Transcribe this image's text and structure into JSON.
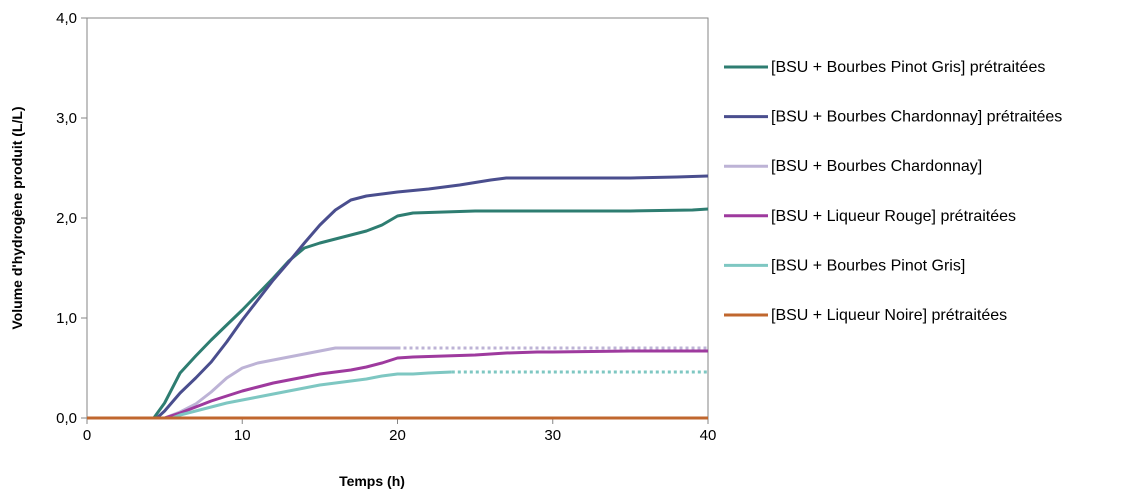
{
  "chart_data": {
    "type": "line",
    "title": "",
    "xlabel": "Temps (h)",
    "ylabel": "Volume d'hydrogène produit (L/L)",
    "xlim": [
      0,
      40
    ],
    "ylim": [
      0,
      4
    ],
    "x_ticks": [
      "0",
      "10",
      "20",
      "30",
      "40"
    ],
    "y_ticks": [
      "0,0",
      "1,0",
      "2,0",
      "3,0",
      "4,0"
    ],
    "grid": false,
    "legend_position": "right",
    "series": [
      {
        "name": "[BSU + Bourbes Pinot Gris] prétraitées",
        "color": "#2e7d71",
        "x": [
          0,
          4.3,
          5,
          6,
          7,
          8,
          9,
          10,
          11,
          12,
          13,
          14,
          15,
          16,
          17,
          18,
          19,
          20,
          21,
          23,
          25,
          30,
          35,
          39,
          40
        ],
        "y": [
          0,
          0,
          0.15,
          0.45,
          0.62,
          0.78,
          0.93,
          1.08,
          1.24,
          1.4,
          1.57,
          1.7,
          1.75,
          1.79,
          1.83,
          1.87,
          1.93,
          2.02,
          2.05,
          2.06,
          2.07,
          2.07,
          2.07,
          2.08,
          2.09
        ],
        "dashed_from_x": null
      },
      {
        "name": "[BSU + Bourbes Chardonnay] prétraitées",
        "color": "#4a4e8e",
        "x": [
          0,
          4.5,
          5,
          6,
          7,
          8,
          9,
          10,
          11,
          12,
          13,
          14,
          15,
          16,
          17,
          18,
          19,
          20,
          22,
          24,
          26,
          27,
          30,
          35,
          38,
          40
        ],
        "y": [
          0,
          0,
          0.07,
          0.25,
          0.4,
          0.56,
          0.76,
          0.98,
          1.18,
          1.38,
          1.56,
          1.75,
          1.93,
          2.08,
          2.18,
          2.22,
          2.24,
          2.26,
          2.29,
          2.33,
          2.38,
          2.4,
          2.4,
          2.4,
          2.41,
          2.42
        ],
        "dashed_from_x": null
      },
      {
        "name": "[BSU + Bourbes Chardonnay]",
        "color": "#bdb3d6",
        "x": [
          0,
          5,
          6,
          7,
          8,
          9,
          10,
          11,
          12,
          13,
          14,
          15,
          16,
          17,
          18,
          19,
          20,
          25,
          30,
          35,
          40
        ],
        "y": [
          0,
          0,
          0.06,
          0.14,
          0.26,
          0.4,
          0.5,
          0.55,
          0.58,
          0.61,
          0.64,
          0.67,
          0.7,
          0.7,
          0.7,
          0.7,
          0.7,
          0.7,
          0.7,
          0.7,
          0.7
        ],
        "dashed_from_x": 20
      },
      {
        "name": "[BSU + Liqueur Rouge] prétraitées",
        "color": "#9e3a9e",
        "x": [
          0,
          5,
          6,
          7,
          8,
          9,
          10,
          11,
          12,
          13,
          14,
          15,
          16,
          17,
          18,
          19,
          20,
          21,
          23,
          25,
          27,
          29,
          30,
          35,
          40
        ],
        "y": [
          0,
          0,
          0.05,
          0.11,
          0.17,
          0.22,
          0.27,
          0.31,
          0.35,
          0.38,
          0.41,
          0.44,
          0.46,
          0.48,
          0.51,
          0.55,
          0.6,
          0.61,
          0.62,
          0.63,
          0.65,
          0.66,
          0.66,
          0.67,
          0.67
        ],
        "dashed_from_x": null
      },
      {
        "name": "[BSU + Bourbes Pinot Gris]",
        "color": "#7ec7c2",
        "x": [
          0,
          5.5,
          6,
          7,
          8,
          9,
          10,
          11,
          12,
          13,
          14,
          15,
          16,
          17,
          18,
          19,
          20,
          21,
          22,
          23.5,
          25,
          30,
          35,
          40
        ],
        "y": [
          0,
          0,
          0.03,
          0.07,
          0.11,
          0.15,
          0.18,
          0.21,
          0.24,
          0.27,
          0.3,
          0.33,
          0.35,
          0.37,
          0.39,
          0.42,
          0.44,
          0.44,
          0.45,
          0.46,
          0.46,
          0.46,
          0.46,
          0.46
        ],
        "dashed_from_x": 23.5
      },
      {
        "name": "[BSU + Liqueur Noire] prétraitées",
        "color": "#c0672e",
        "x": [
          0,
          40
        ],
        "y": [
          0,
          0
        ],
        "dashed_from_x": null
      }
    ]
  }
}
